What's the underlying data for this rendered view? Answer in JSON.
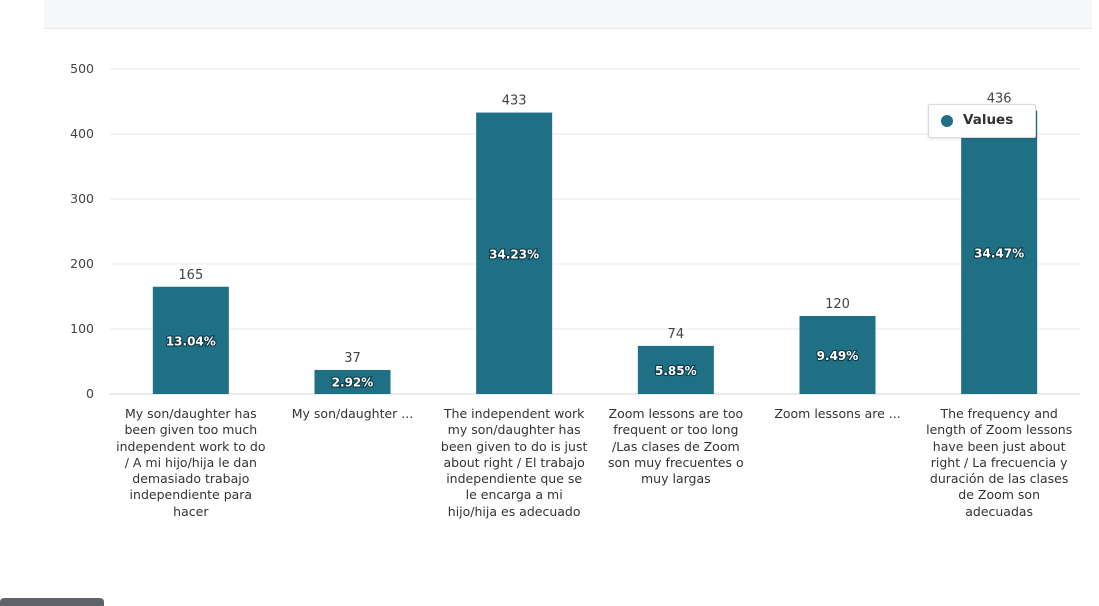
{
  "chart_data": {
    "type": "bar",
    "categories": [
      "My son/daughter has been given too much independent work to do / A mi hijo/hija le dan demasiado trabajo independiente para hacer",
      "My son/daughter ...",
      "The independent work my son/daughter has been given to do is just about right / El trabajo independiente que se le encarga a mi hijo/hija es adecuado",
      "Zoom lessons are too frequent or too long /Las clases de Zoom son muy frecuentes o muy largas",
      "Zoom lessons are ...",
      "The frequency and length of Zoom lessons have been just about right / La frecuencia y duración de las clases de Zoom son adecuadas"
    ],
    "series": [
      {
        "name": "Values",
        "values": [
          165,
          37,
          433,
          74,
          120,
          436
        ],
        "percent_labels": [
          "13.04%",
          "2.92%",
          "34.23%",
          "5.85%",
          "9.49%",
          "34.47%"
        ]
      }
    ],
    "ylim": [
      0,
      500
    ],
    "yticks": [
      "0",
      "100",
      "200",
      "300",
      "400",
      "500"
    ],
    "grid": true,
    "legend_placement": "top-right",
    "bar_color": "#1f6f85",
    "title": "",
    "xlabel": "",
    "ylabel": ""
  },
  "legend": {
    "label": "Values",
    "color": "#1f6f85"
  }
}
